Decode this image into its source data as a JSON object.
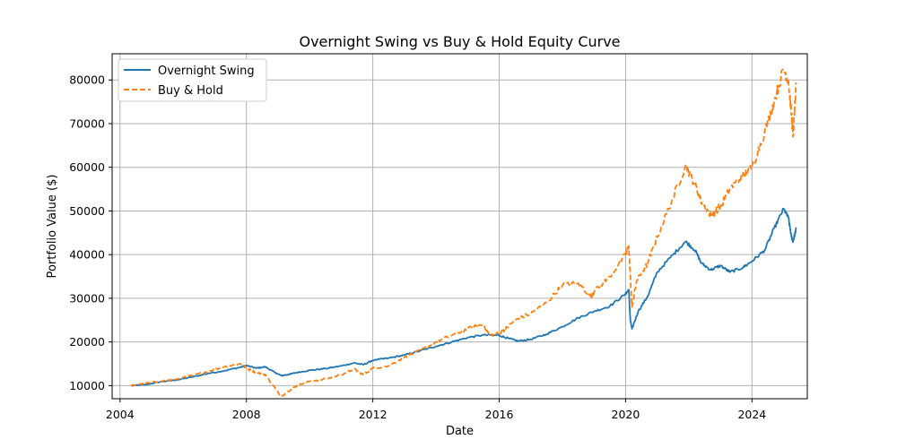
{
  "chart_data": {
    "type": "line",
    "title": "Overnight Swing vs Buy & Hold Equity Curve",
    "xlabel": "Date",
    "ylabel": "Portfolio Value ($)",
    "xlim": [
      2003.75,
      2025.75
    ],
    "ylim": [
      7000,
      86000
    ],
    "xticks": [
      2004,
      2008,
      2012,
      2016,
      2020,
      2024
    ],
    "yticks": [
      10000,
      20000,
      30000,
      40000,
      50000,
      60000,
      70000,
      80000
    ],
    "grid": true,
    "legend": "upper-left",
    "series": [
      {
        "name": "Overnight Swing",
        "color": "#1f77b4",
        "style": "solid",
        "points": [
          [
            2004.35,
            10000
          ],
          [
            2004.8,
            10200
          ],
          [
            2005.3,
            10900
          ],
          [
            2005.8,
            11300
          ],
          [
            2006.3,
            12000
          ],
          [
            2006.8,
            12800
          ],
          [
            2007.3,
            13400
          ],
          [
            2007.8,
            14200
          ],
          [
            2008.0,
            14600
          ],
          [
            2008.3,
            14000
          ],
          [
            2008.6,
            14300
          ],
          [
            2008.9,
            13000
          ],
          [
            2009.1,
            12300
          ],
          [
            2009.3,
            12500
          ],
          [
            2009.6,
            13000
          ],
          [
            2010.0,
            13500
          ],
          [
            2010.5,
            13900
          ],
          [
            2011.0,
            14500
          ],
          [
            2011.4,
            15200
          ],
          [
            2011.7,
            14800
          ],
          [
            2012.0,
            15800
          ],
          [
            2012.5,
            16300
          ],
          [
            2013.0,
            17000
          ],
          [
            2013.5,
            18000
          ],
          [
            2014.0,
            19000
          ],
          [
            2014.5,
            20000
          ],
          [
            2015.0,
            21000
          ],
          [
            2015.5,
            21600
          ],
          [
            2016.0,
            21500
          ],
          [
            2016.3,
            20800
          ],
          [
            2016.6,
            20200
          ],
          [
            2017.0,
            20600
          ],
          [
            2017.5,
            21800
          ],
          [
            2018.0,
            23500
          ],
          [
            2018.5,
            25500
          ],
          [
            2019.0,
            27000
          ],
          [
            2019.5,
            28200
          ],
          [
            2020.0,
            31000
          ],
          [
            2020.1,
            32000
          ],
          [
            2020.15,
            25000
          ],
          [
            2020.2,
            23000
          ],
          [
            2020.4,
            27000
          ],
          [
            2020.7,
            30500
          ],
          [
            2021.0,
            36000
          ],
          [
            2021.5,
            40000
          ],
          [
            2021.9,
            43000
          ],
          [
            2022.2,
            41000
          ],
          [
            2022.4,
            38000
          ],
          [
            2022.7,
            36500
          ],
          [
            2023.0,
            37500
          ],
          [
            2023.3,
            36000
          ],
          [
            2023.7,
            37000
          ],
          [
            2024.0,
            38500
          ],
          [
            2024.4,
            41000
          ],
          [
            2024.7,
            46000
          ],
          [
            2025.0,
            50500
          ],
          [
            2025.15,
            48500
          ],
          [
            2025.25,
            44000
          ],
          [
            2025.3,
            43000
          ],
          [
            2025.4,
            46000
          ]
        ]
      },
      {
        "name": "Buy & Hold",
        "color": "#ff7f0e",
        "style": "dashed",
        "points": [
          [
            2004.35,
            10000
          ],
          [
            2004.8,
            10500
          ],
          [
            2005.3,
            11000
          ],
          [
            2005.8,
            11500
          ],
          [
            2006.3,
            12300
          ],
          [
            2006.8,
            13300
          ],
          [
            2007.3,
            14300
          ],
          [
            2007.8,
            15000
          ],
          [
            2008.0,
            14000
          ],
          [
            2008.3,
            13000
          ],
          [
            2008.6,
            12500
          ],
          [
            2008.9,
            9500
          ],
          [
            2009.1,
            7500
          ],
          [
            2009.3,
            8500
          ],
          [
            2009.6,
            10000
          ],
          [
            2010.0,
            11000
          ],
          [
            2010.5,
            11500
          ],
          [
            2011.0,
            12500
          ],
          [
            2011.4,
            13800
          ],
          [
            2011.7,
            12500
          ],
          [
            2012.0,
            14000
          ],
          [
            2012.5,
            14500
          ],
          [
            2013.0,
            16500
          ],
          [
            2013.5,
            18000
          ],
          [
            2014.0,
            20000
          ],
          [
            2014.5,
            21500
          ],
          [
            2015.0,
            23000
          ],
          [
            2015.5,
            24000
          ],
          [
            2015.7,
            21500
          ],
          [
            2016.0,
            22000
          ],
          [
            2016.2,
            23000
          ],
          [
            2016.5,
            25000
          ],
          [
            2017.0,
            26500
          ],
          [
            2017.5,
            29000
          ],
          [
            2018.0,
            33000
          ],
          [
            2018.5,
            33500
          ],
          [
            2018.9,
            30500
          ],
          [
            2019.0,
            31500
          ],
          [
            2019.5,
            35000
          ],
          [
            2020.0,
            40000
          ],
          [
            2020.1,
            42000
          ],
          [
            2020.2,
            28000
          ],
          [
            2020.35,
            34000
          ],
          [
            2020.7,
            38000
          ],
          [
            2021.0,
            44000
          ],
          [
            2021.5,
            53000
          ],
          [
            2021.9,
            60500
          ],
          [
            2022.2,
            56000
          ],
          [
            2022.4,
            52000
          ],
          [
            2022.7,
            49000
          ],
          [
            2023.0,
            51000
          ],
          [
            2023.3,
            55000
          ],
          [
            2023.7,
            58000
          ],
          [
            2024.0,
            60000
          ],
          [
            2024.4,
            68000
          ],
          [
            2024.7,
            75000
          ],
          [
            2025.0,
            82500
          ],
          [
            2025.15,
            80000
          ],
          [
            2025.25,
            72000
          ],
          [
            2025.3,
            67000
          ],
          [
            2025.4,
            79000
          ]
        ]
      }
    ]
  }
}
